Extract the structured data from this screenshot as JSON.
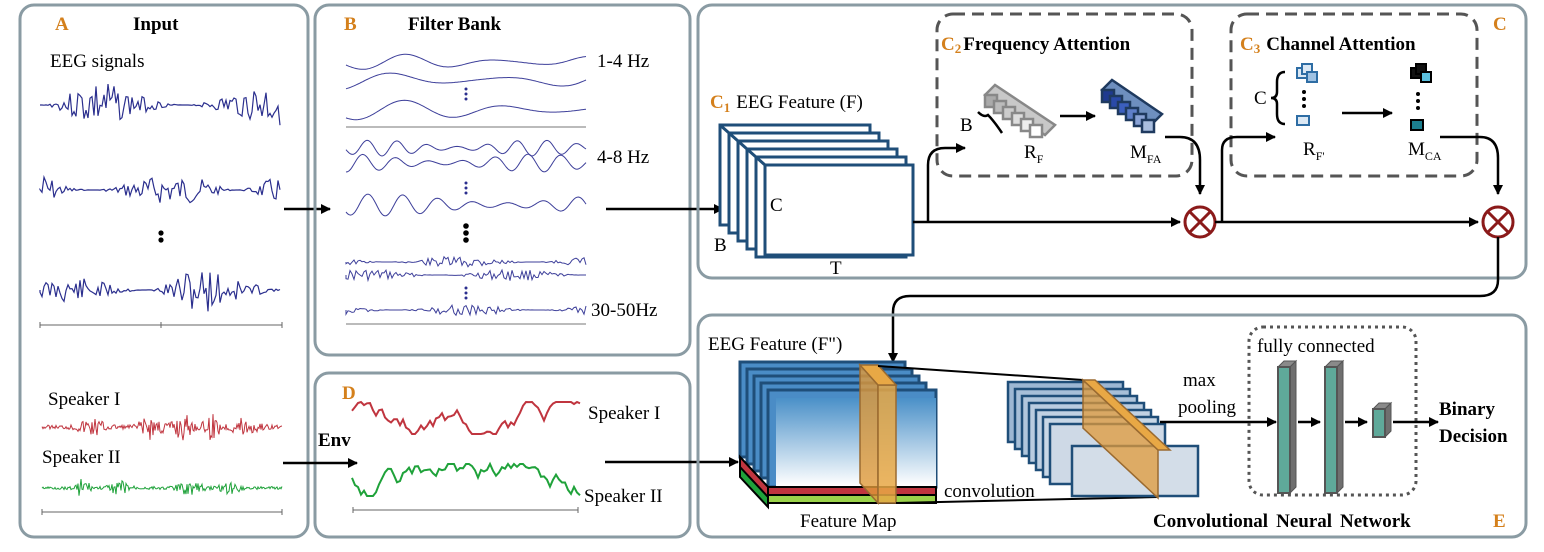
{
  "panel_a": {
    "letter": "A",
    "title": "Input",
    "eeg_label": "EEG signals",
    "speaker1": "Speaker I",
    "speaker2": "Speaker II"
  },
  "panel_b": {
    "letter": "B",
    "title": "Filter Bank",
    "bands": [
      "1-4 Hz",
      "4-8 Hz",
      "30-50Hz"
    ]
  },
  "panel_c": {
    "letter": "C",
    "c1_letter": "C",
    "c1_sub": "1",
    "c1_title": "EEG Feature (F)",
    "cube_c": "C",
    "cube_b": "B",
    "cube_t": "T",
    "c2_letter": "C",
    "c2_sub": "2",
    "c2_title": "Frequency Attention",
    "c3_letter": "C",
    "c3_sub": "3",
    "c3_title": "Channel Attention",
    "rf": "R",
    "rf_sub": "F",
    "mfa": "M",
    "mfa_sub": "FA",
    "rf2": "R",
    "rf2_sub": "F'",
    "mca": "M",
    "mca_sub": "CA",
    "b_brace": "B",
    "c_brace": "C"
  },
  "panel_d": {
    "letter": "D",
    "env": "Env",
    "speaker1": "Speaker I",
    "speaker2": "Speaker II"
  },
  "panel_e": {
    "letter": "E",
    "feature_title": "EEG Feature (F\")",
    "feature_map": "Feature Map",
    "convolution": "convolution",
    "max_pooling_1": "max",
    "max_pooling_2": "pooling",
    "fully_connected": "fully connected",
    "binary_1": "Binary",
    "binary_2": "Decision",
    "cnn_1": "Convolutional",
    "cnn_2": "Neural",
    "cnn_3": "Network"
  },
  "colors": {
    "eeg": "#2b2f8e",
    "speaker1": "#c0353f",
    "speaker2": "#1fa23a",
    "cube_edge": "#1f4e79",
    "orange_label": "#d4801c",
    "panel_border": "#8a9ba3",
    "multiply": "#8b1a1a",
    "fc_bar": "#5fa99a"
  }
}
